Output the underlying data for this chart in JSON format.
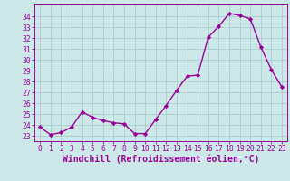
{
  "hours": [
    0,
    1,
    2,
    3,
    4,
    5,
    6,
    7,
    8,
    9,
    10,
    11,
    12,
    13,
    14,
    15,
    16,
    17,
    18,
    19,
    20,
    21,
    22,
    23
  ],
  "values": [
    23.8,
    23.1,
    23.3,
    23.8,
    25.2,
    24.7,
    24.4,
    24.2,
    24.1,
    23.2,
    23.2,
    24.5,
    25.8,
    27.2,
    28.5,
    28.6,
    32.1,
    33.1,
    34.3,
    34.1,
    33.8,
    31.2,
    29.1,
    27.5
  ],
  "line_color": "#990099",
  "marker": "D",
  "marker_size": 2.2,
  "bg_color": "#cce8e8",
  "grid_color": "#aacccc",
  "xlabel": "Windchill (Refroidissement éolien,°C)",
  "ylim": [
    22.5,
    35.2
  ],
  "xlim": [
    -0.5,
    23.5
  ],
  "yticks": [
    23,
    24,
    25,
    26,
    27,
    28,
    29,
    30,
    31,
    32,
    33,
    34
  ],
  "xticks": [
    0,
    1,
    2,
    3,
    4,
    5,
    6,
    7,
    8,
    9,
    10,
    11,
    12,
    13,
    14,
    15,
    16,
    17,
    18,
    19,
    20,
    21,
    22,
    23
  ],
  "tick_color": "#990099",
  "label_color": "#990099",
  "spine_color": "#990099",
  "xlabel_fontsize": 7.0,
  "tick_fontsize": 5.8,
  "linewidth": 1.0
}
